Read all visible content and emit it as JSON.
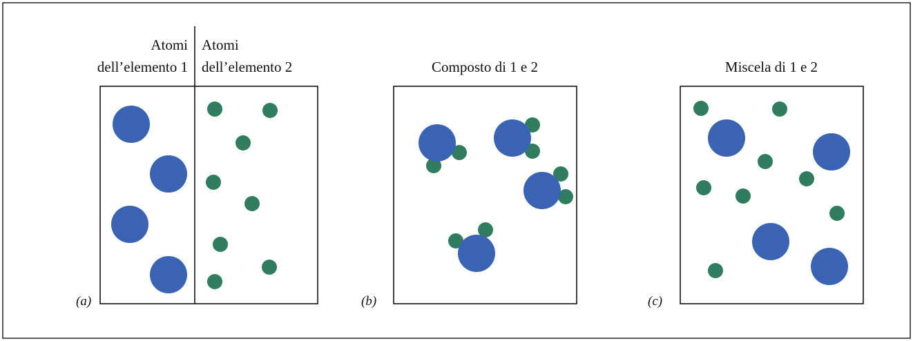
{
  "panels": [
    {
      "label": "(a)",
      "headings": [
        {
          "lines": [
            "Atomi",
            "dell’elemento 1"
          ]
        },
        {
          "lines": [
            "Atomi",
            "dell’elemento 2"
          ]
        }
      ]
    },
    {
      "label": "(b)",
      "headings": [
        {
          "lines": [
            "Composto di 1 e 2"
          ]
        }
      ]
    },
    {
      "label": "(c)",
      "headings": [
        {
          "lines": [
            "Miscela di 1 e 2"
          ]
        }
      ]
    }
  ]
}
